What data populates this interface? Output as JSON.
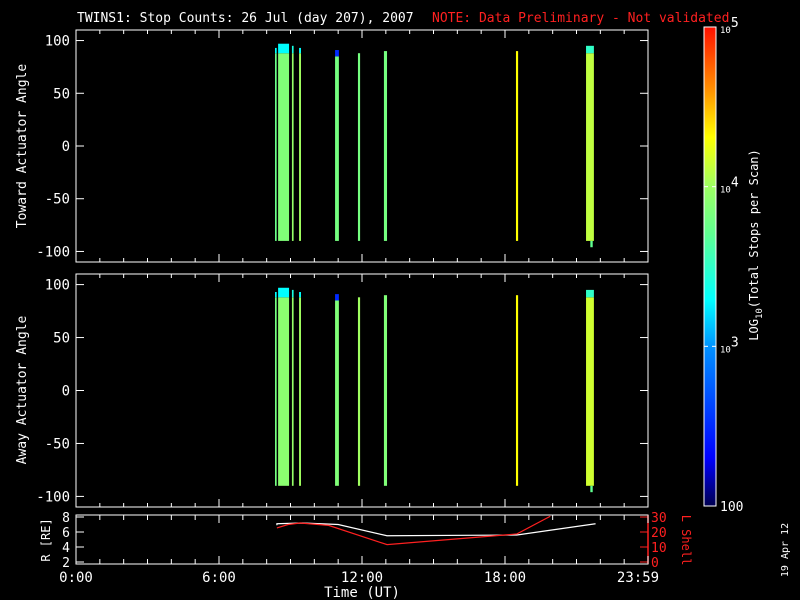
{
  "title": "TWINS1: Stop Counts: 26 Jul (day 207), 2007",
  "note": "NOTE: Data Preliminary - Not validated",
  "date_stamp": "19 Apr 12",
  "colors": {
    "background": "#000000",
    "axes": "#ffffff",
    "note": "#ff2020",
    "r_line": "#ffffff",
    "l_line": "#ff2020"
  },
  "chart_data": [
    {
      "type": "heatmap",
      "ylabel": "Toward Actuator Angle",
      "ylim": [
        -110,
        110
      ],
      "yticks": [
        "100",
        "50",
        "0",
        "-50",
        "-100"
      ],
      "xlim_hours": [
        0,
        24
      ],
      "value_scale": "log10",
      "bars": [
        {
          "t0": 8.35,
          "t1": 8.42,
          "y0": -90,
          "y1": 88,
          "log10": 3.75,
          "cap": {
            "y1": 93,
            "log10": 3.3
          }
        },
        {
          "t0": 8.48,
          "t1": 8.94,
          "y0": -90,
          "y1": 88,
          "log10": 3.85,
          "cap": {
            "y1": 97,
            "log10": 3.3
          }
        },
        {
          "t0": 9.06,
          "t1": 9.13,
          "y0": -90,
          "y1": 88,
          "log10": 3.95,
          "cap": {
            "y1": 95,
            "log10": 3.4
          }
        },
        {
          "t0": 9.36,
          "t1": 9.44,
          "y0": -90,
          "y1": 88,
          "log10": 4.0,
          "cap": {
            "y1": 93,
            "log10": 3.3
          }
        },
        {
          "t0": 10.87,
          "t1": 11.03,
          "y0": -90,
          "y1": 85,
          "log10": 3.8,
          "cap": {
            "y1": 91,
            "log10": 2.5
          }
        },
        {
          "t0": 11.83,
          "t1": 11.92,
          "y0": -90,
          "y1": 88,
          "log10": 3.8
        },
        {
          "t0": 12.92,
          "t1": 13.05,
          "y0": -90,
          "y1": 90,
          "log10": 3.8
        },
        {
          "t0": 18.46,
          "t1": 18.55,
          "y0": -90,
          "y1": 90,
          "log10": 4.3
        },
        {
          "t0": 21.4,
          "t1": 21.73,
          "y0": -90,
          "y1": 88,
          "log10": 4.1,
          "cap": {
            "y1": 95,
            "log10": 3.5
          }
        },
        {
          "t0": 21.58,
          "t1": 21.68,
          "y0": -96,
          "y1": -90,
          "log10": 3.7
        }
      ]
    },
    {
      "type": "heatmap",
      "ylabel": "Away Actuator Angle",
      "ylim": [
        -110,
        110
      ],
      "yticks": [
        "100",
        "50",
        "0",
        "-50",
        "-100"
      ],
      "xlim_hours": [
        0,
        24
      ],
      "value_scale": "log10",
      "bars": [
        {
          "t0": 8.35,
          "t1": 8.42,
          "y0": -90,
          "y1": 88,
          "log10": 3.8,
          "cap": {
            "y1": 93,
            "log10": 3.3
          }
        },
        {
          "t0": 8.48,
          "t1": 8.94,
          "y0": -90,
          "y1": 88,
          "log10": 3.9,
          "cap": {
            "y1": 97,
            "log10": 3.3
          }
        },
        {
          "t0": 9.06,
          "t1": 9.13,
          "y0": -90,
          "y1": 88,
          "log10": 3.95,
          "cap": {
            "y1": 95,
            "log10": 3.4
          }
        },
        {
          "t0": 9.36,
          "t1": 9.44,
          "y0": -90,
          "y1": 88,
          "log10": 4.0,
          "cap": {
            "y1": 93,
            "log10": 3.3
          }
        },
        {
          "t0": 10.87,
          "t1": 11.03,
          "y0": -90,
          "y1": 85,
          "log10": 3.85,
          "cap": {
            "y1": 91,
            "log10": 2.5
          }
        },
        {
          "t0": 11.83,
          "t1": 11.92,
          "y0": -90,
          "y1": 88,
          "log10": 4.0
        },
        {
          "t0": 12.92,
          "t1": 13.05,
          "y0": -90,
          "y1": 90,
          "log10": 3.85
        },
        {
          "t0": 18.46,
          "t1": 18.55,
          "y0": -90,
          "y1": 90,
          "log10": 4.3
        },
        {
          "t0": 21.4,
          "t1": 21.73,
          "y0": -90,
          "y1": 88,
          "log10": 4.15,
          "cap": {
            "y1": 95,
            "log10": 3.5
          }
        },
        {
          "t0": 21.58,
          "t1": 21.68,
          "y0": -96,
          "y1": -90,
          "log10": 3.7
        }
      ]
    },
    {
      "type": "line",
      "xlabel": "Time (UT)",
      "xticks": [
        "0:00",
        "6:00",
        "12:00",
        "18:00",
        "23:59"
      ],
      "ylabel": "R [RE]",
      "ylim": [
        2,
        8
      ],
      "yticks": [
        "8",
        "6",
        "4",
        "2"
      ],
      "y2label": "L Shell",
      "y2lim": [
        0,
        30
      ],
      "y2ticks": [
        "30",
        "20",
        "10",
        "0"
      ],
      "series": [
        {
          "axis": "left",
          "x_hours": [
            8.43,
            8.43,
            9.5,
            11.0,
            13.05,
            18.5,
            21.8
          ],
          "values": [
            6.9,
            7.1,
            7.2,
            7.0,
            5.5,
            5.6,
            7.1
          ]
        },
        {
          "axis": "right",
          "x_hours": [
            8.43,
            8.9,
            9.4,
            10.6,
            13.05,
            18.5,
            19.9
          ],
          "values": [
            22.7,
            25.0,
            26.0,
            24.4,
            11.6,
            18.7,
            30.5
          ]
        }
      ]
    }
  ],
  "colorbar": {
    "label_prefix": "LOG",
    "label_sub": "10",
    "label_suffix": "(Total Stops per Scan)",
    "range_log10": [
      2,
      5
    ],
    "ticks": [
      {
        "base": "10",
        "exp": "5",
        "log10": 5
      },
      {
        "base": "10",
        "exp": "4",
        "log10": 4
      },
      {
        "base": "10",
        "exp": "3",
        "log10": 3
      },
      {
        "base": "100",
        "exp": "",
        "log10": 2
      }
    ]
  }
}
